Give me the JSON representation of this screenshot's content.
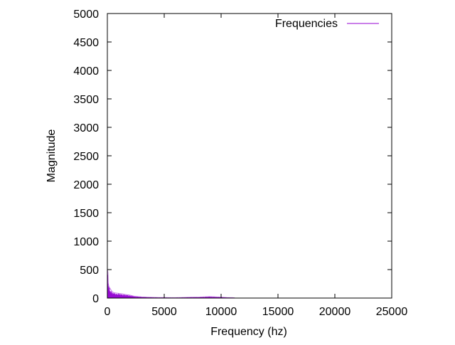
{
  "chart_data": {
    "type": "line",
    "title": "",
    "xlabel": "Frequency (hz)",
    "ylabel": "Magnitude",
    "xlim": [
      0,
      25000
    ],
    "ylim": [
      0,
      5000
    ],
    "xticks": [
      0,
      5000,
      10000,
      15000,
      20000,
      25000
    ],
    "yticks": [
      0,
      500,
      1000,
      1500,
      2000,
      2500,
      3000,
      3500,
      4000,
      4500,
      5000
    ],
    "grid": false,
    "legend_position": "top-right",
    "series": [
      {
        "name": "Frequencies",
        "color": "#9400d3",
        "render": "impulses",
        "x": [
          0,
          25,
          50,
          75,
          100,
          150,
          200,
          300,
          400,
          500,
          700,
          900,
          1100,
          1300,
          1500,
          1700,
          1900,
          2100,
          2300,
          2500,
          2700,
          3000,
          3500,
          4000,
          4500,
          5000,
          5500,
          6000,
          6500,
          7000,
          7500,
          8000,
          8500,
          9000,
          9500,
          10000,
          10500,
          11000,
          11200
        ],
        "values": [
          500,
          480,
          450,
          300,
          230,
          200,
          180,
          150,
          120,
          100,
          90,
          85,
          80,
          75,
          65,
          60,
          55,
          45,
          35,
          30,
          25,
          20,
          15,
          12,
          10,
          10,
          8,
          8,
          10,
          12,
          15,
          15,
          20,
          25,
          20,
          15,
          10,
          8,
          5
        ]
      }
    ]
  }
}
